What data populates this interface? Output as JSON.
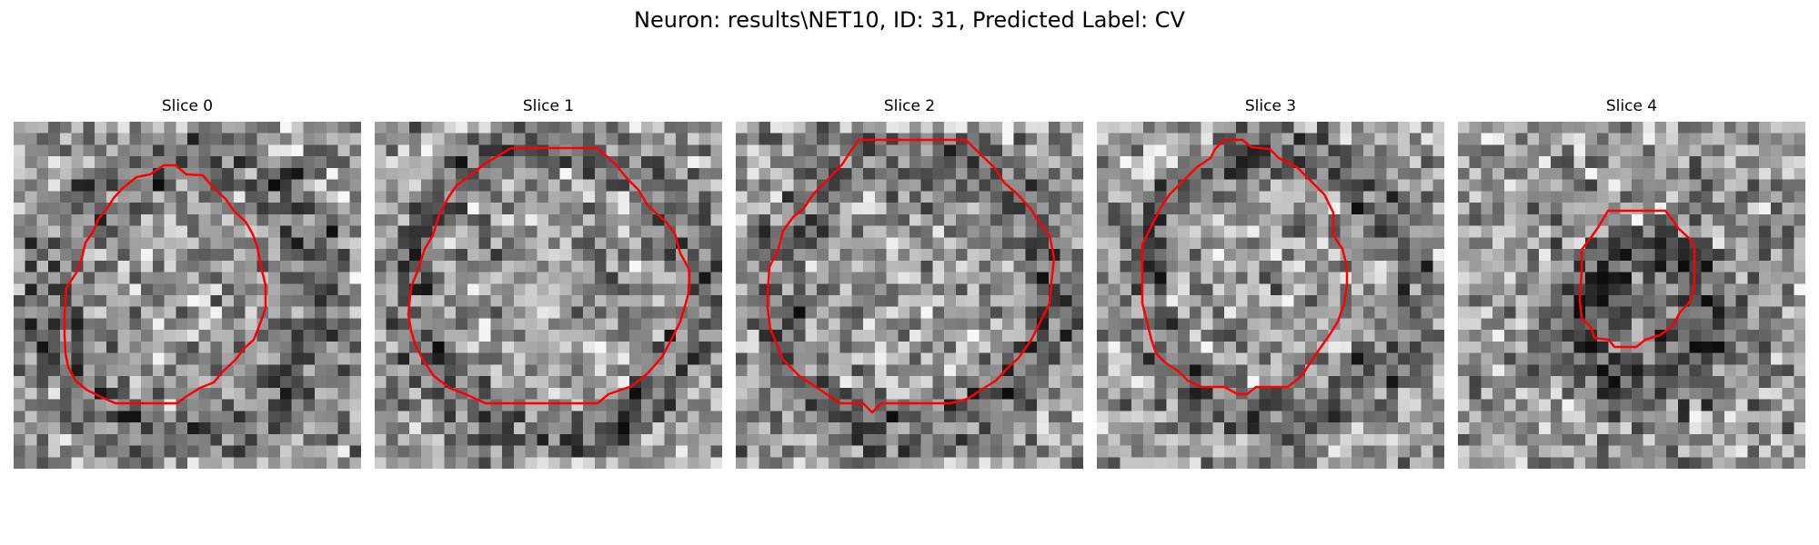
{
  "figure": {
    "title": "Neuron: results\\NET10, ID: 31, Predicted Label: CV"
  },
  "colors": {
    "background": "#ffffff",
    "contour": "#ff0000",
    "colormap": "gray"
  },
  "panels": [
    {
      "title": "Slice 0",
      "image": "noisy grayscale patch",
      "contour": "large irregular circle outline"
    },
    {
      "title": "Slice 1",
      "image": "noisy grayscale patch",
      "contour": "large irregular circle outline"
    },
    {
      "title": "Slice 2",
      "image": "noisy grayscale patch",
      "contour": "large irregular circle outline"
    },
    {
      "title": "Slice 3",
      "image": "noisy grayscale patch",
      "contour": "large irregular circle outline"
    },
    {
      "title": "Slice 4",
      "image": "noisy grayscale patch",
      "contour": "small irregular oval outline"
    }
  ]
}
